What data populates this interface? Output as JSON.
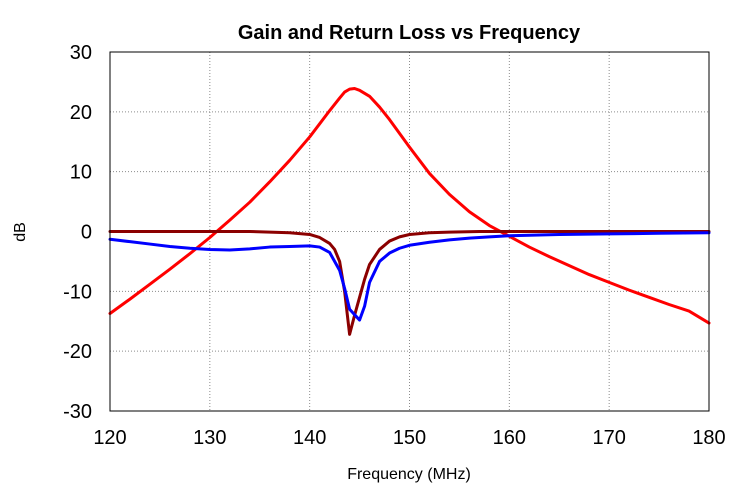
{
  "chart_data": {
    "type": "line",
    "title": "Gain and Return Loss vs Frequency",
    "xlabel": "Frequency (MHz)",
    "ylabel": "dB",
    "xlim": [
      120,
      180
    ],
    "ylim": [
      -30,
      30
    ],
    "x_ticks": [
      120,
      130,
      140,
      150,
      160,
      170,
      180
    ],
    "y_ticks": [
      -30,
      -20,
      -10,
      0,
      10,
      20,
      30
    ],
    "grid": true,
    "legend": "none",
    "series": [
      {
        "color": "#ff0000",
        "points": [
          [
            120,
            -13.7
          ],
          [
            122,
            -11.3
          ],
          [
            124,
            -8.8
          ],
          [
            126,
            -6.3
          ],
          [
            128,
            -3.7
          ],
          [
            130,
            -1.0
          ],
          [
            132,
            1.9
          ],
          [
            134,
            4.9
          ],
          [
            136,
            8.3
          ],
          [
            138,
            11.9
          ],
          [
            140,
            15.8
          ],
          [
            141,
            18.0
          ],
          [
            142,
            20.2
          ],
          [
            143,
            22.3
          ],
          [
            143.5,
            23.3
          ],
          [
            144,
            23.8
          ],
          [
            144.5,
            23.9
          ],
          [
            145,
            23.6
          ],
          [
            146,
            22.6
          ],
          [
            147,
            20.8
          ],
          [
            148,
            18.7
          ],
          [
            150,
            14.1
          ],
          [
            152,
            9.7
          ],
          [
            154,
            6.2
          ],
          [
            156,
            3.3
          ],
          [
            158,
            1.0
          ],
          [
            160,
            -0.8
          ],
          [
            162,
            -2.6
          ],
          [
            164,
            -4.2
          ],
          [
            166,
            -5.7
          ],
          [
            168,
            -7.2
          ],
          [
            170,
            -8.5
          ],
          [
            172,
            -9.8
          ],
          [
            174,
            -11.0
          ],
          [
            176,
            -12.2
          ],
          [
            178,
            -13.3
          ],
          [
            180,
            -15.3
          ]
        ]
      },
      {
        "color": "#8b0000",
        "points": [
          [
            120,
            0.0
          ],
          [
            125,
            0.0
          ],
          [
            130,
            0.0
          ],
          [
            134,
            0.0
          ],
          [
            136,
            -0.1
          ],
          [
            138,
            -0.2
          ],
          [
            140,
            -0.5
          ],
          [
            141,
            -1.0
          ],
          [
            142,
            -2.0
          ],
          [
            142.5,
            -3.0
          ],
          [
            143,
            -5.0
          ],
          [
            143.5,
            -10.0
          ],
          [
            144,
            -17.2
          ],
          [
            144.5,
            -14.0
          ],
          [
            145,
            -11.0
          ],
          [
            145.5,
            -8.0
          ],
          [
            146,
            -5.5
          ],
          [
            147,
            -3.0
          ],
          [
            148,
            -1.6
          ],
          [
            149,
            -0.9
          ],
          [
            150,
            -0.5
          ],
          [
            152,
            -0.2
          ],
          [
            154,
            -0.1
          ],
          [
            157,
            0.0
          ],
          [
            160,
            0.0
          ],
          [
            170,
            0.0
          ],
          [
            180,
            0.0
          ]
        ]
      },
      {
        "color": "#0000ff",
        "points": [
          [
            120,
            -1.3
          ],
          [
            122,
            -1.7
          ],
          [
            124,
            -2.1
          ],
          [
            126,
            -2.5
          ],
          [
            128,
            -2.8
          ],
          [
            130,
            -3.0
          ],
          [
            132,
            -3.1
          ],
          [
            134,
            -2.9
          ],
          [
            136,
            -2.6
          ],
          [
            138,
            -2.5
          ],
          [
            140,
            -2.4
          ],
          [
            141,
            -2.6
          ],
          [
            142,
            -3.5
          ],
          [
            143,
            -6.5
          ],
          [
            143.5,
            -9.5
          ],
          [
            144,
            -13.0
          ],
          [
            145,
            -14.8
          ],
          [
            145.5,
            -12.5
          ],
          [
            146,
            -8.5
          ],
          [
            147,
            -5.0
          ],
          [
            148,
            -3.6
          ],
          [
            149,
            -2.8
          ],
          [
            150,
            -2.3
          ],
          [
            152,
            -1.8
          ],
          [
            154,
            -1.4
          ],
          [
            156,
            -1.1
          ],
          [
            158,
            -0.9
          ],
          [
            160,
            -0.7
          ],
          [
            165,
            -0.5
          ],
          [
            170,
            -0.4
          ],
          [
            175,
            -0.3
          ],
          [
            180,
            -0.2
          ]
        ]
      }
    ]
  }
}
